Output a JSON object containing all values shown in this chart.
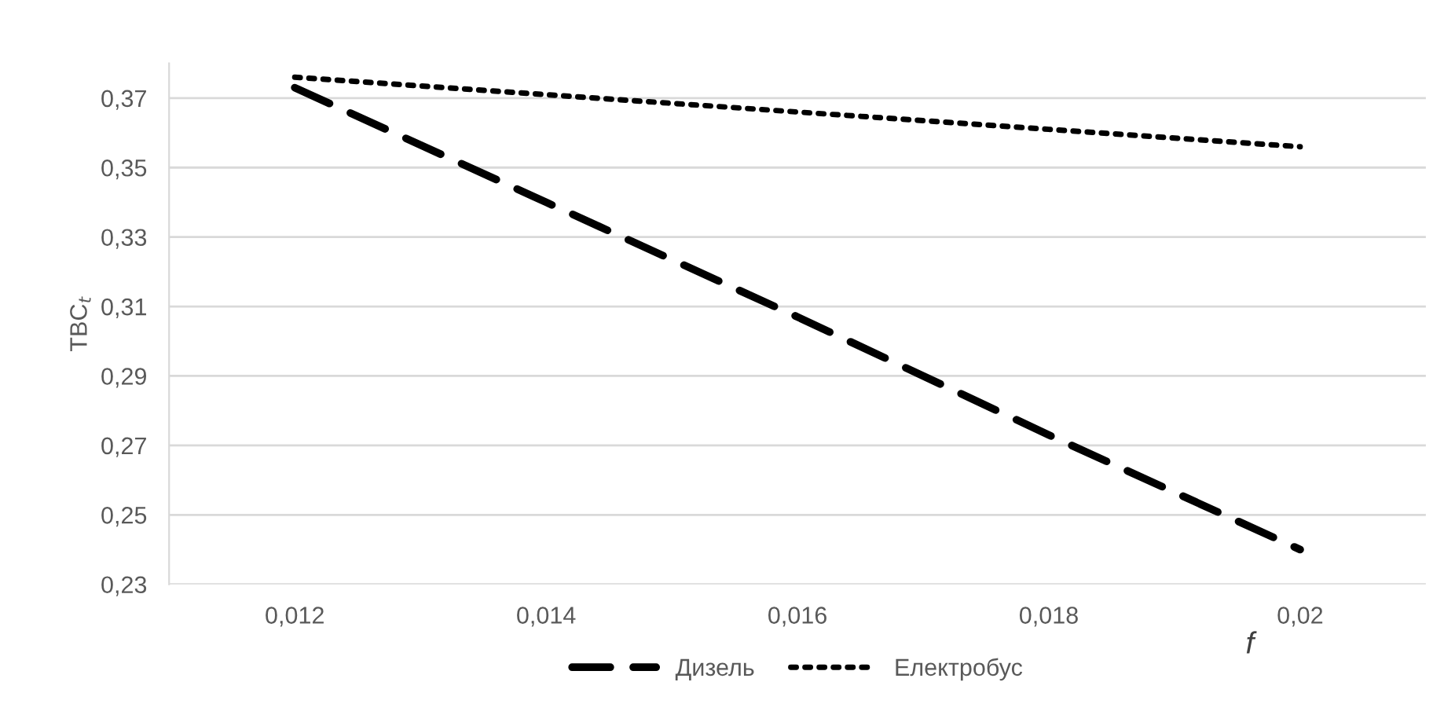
{
  "chart_data": {
    "type": "line",
    "xlabel": "f",
    "ylabel": "TBC$_{t}$",
    "categories": [
      "0,012",
      "0,014",
      "0,016",
      "0,018",
      "0,02"
    ],
    "series": [
      {
        "name": "Дизель",
        "color": "#000000",
        "line_style": "dashed",
        "values": [
          0.373,
          0.34,
          0.307,
          0.273,
          0.24
        ]
      },
      {
        "name": "Електробус",
        "color": "#000000",
        "line_style": "dotted",
        "values": [
          0.376,
          0.371,
          0.366,
          0.361,
          0.356
        ]
      }
    ],
    "ylim": [
      0.23,
      0.38
    ],
    "yticks": [
      {
        "value": 0.23,
        "label": "0,23"
      },
      {
        "value": 0.25,
        "label": "0,25"
      },
      {
        "value": 0.27,
        "label": "0,27"
      },
      {
        "value": 0.29,
        "label": "0,29"
      },
      {
        "value": 0.31,
        "label": "0,31"
      },
      {
        "value": 0.33,
        "label": "0,33"
      },
      {
        "value": 0.35,
        "label": "0,35"
      },
      {
        "value": 0.37,
        "label": "0,37"
      }
    ],
    "grid": "y",
    "legend": "bottom",
    "marker": "none"
  }
}
